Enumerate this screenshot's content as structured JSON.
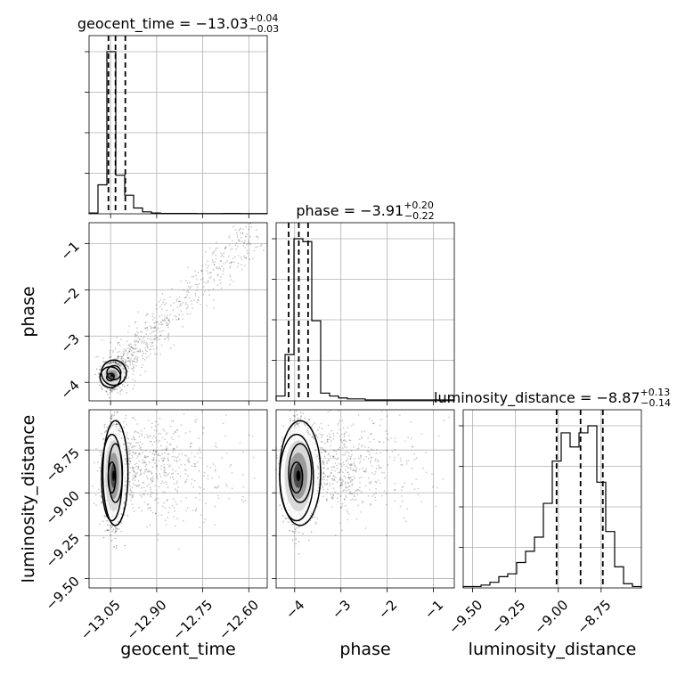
{
  "chart_data": {
    "type": "corner",
    "parameters": [
      {
        "name": "geocent_time",
        "title_prefix": "geocent_time = ",
        "median": "−13.03",
        "err_plus": "+0.04",
        "err_minus": "−0.03",
        "quantiles": [
          -13.057,
          -13.034,
          -13.002
        ],
        "range": [
          -13.12,
          -12.54
        ],
        "ticks": [
          -13.05,
          -12.9,
          -12.75,
          -12.6
        ],
        "tick_labels": [
          "−13.05",
          "−12.90",
          "−12.75",
          "−12.60"
        ],
        "hist": {
          "edges_start": -13.12,
          "bin_width": 0.029,
          "counts": [
            2,
            75,
            420,
            100,
            48,
            15,
            5,
            2,
            1,
            1,
            1,
            1,
            0.5,
            0.5,
            0.5,
            1,
            1,
            0.5,
            0.5,
            0.5
          ]
        }
      },
      {
        "name": "phase",
        "title_prefix": "phase = ",
        "median": "−3.91",
        "err_plus": "+0.20",
        "err_minus": "−0.22",
        "quantiles": [
          -4.13,
          -3.91,
          -3.71
        ],
        "range": [
          -4.4,
          -0.55
        ],
        "ticks": [
          -4,
          -3,
          -2,
          -1
        ],
        "tick_labels": [
          "−4",
          "−3",
          "−2",
          "−1"
        ],
        "yticks_labels": [
          "−1",
          "−2",
          "−3",
          "−4"
        ],
        "hist": {
          "edges_start": -4.4,
          "bin_width": 0.1925,
          "counts": [
            5,
            48,
            168,
            165,
            83,
            8,
            5,
            3,
            2,
            2,
            1,
            1,
            1,
            1,
            1,
            1,
            1,
            1,
            1,
            1
          ]
        }
      },
      {
        "name": "luminosity_distance",
        "title_prefix": "luminosity_distance = ",
        "median": "−8.87",
        "err_plus": "+0.13",
        "err_minus": "−0.14",
        "quantiles": [
          -9.01,
          -8.87,
          -8.74
        ],
        "range": [
          -9.555,
          -8.515
        ],
        "ticks": [
          -9.5,
          -9.25,
          -9.0,
          -8.75
        ],
        "tick_labels": [
          "−9.50",
          "−9.25",
          "−9.00",
          "−8.75"
        ],
        "hist": {
          "edges_start": -9.555,
          "bin_width": 0.052,
          "counts": [
            1,
            1,
            2,
            4,
            8,
            10,
            18,
            26,
            36,
            60,
            90,
            110,
            100,
            110,
            115,
            75,
            40,
            15,
            3,
            1
          ]
        }
      }
    ],
    "pairs": [
      {
        "x": "geocent_time",
        "y": "phase",
        "center": [
          -13.045,
          -3.85
        ],
        "spread": [
          0.012,
          0.08
        ]
      },
      {
        "x": "geocent_time",
        "y": "luminosity_distance",
        "center": [
          -13.04,
          -8.9
        ],
        "spread": [
          0.012,
          0.09
        ]
      },
      {
        "x": "phase",
        "y": "luminosity_distance",
        "center": [
          -3.92,
          -8.9
        ],
        "spread": [
          0.13,
          0.09
        ]
      }
    ],
    "grid": true
  }
}
